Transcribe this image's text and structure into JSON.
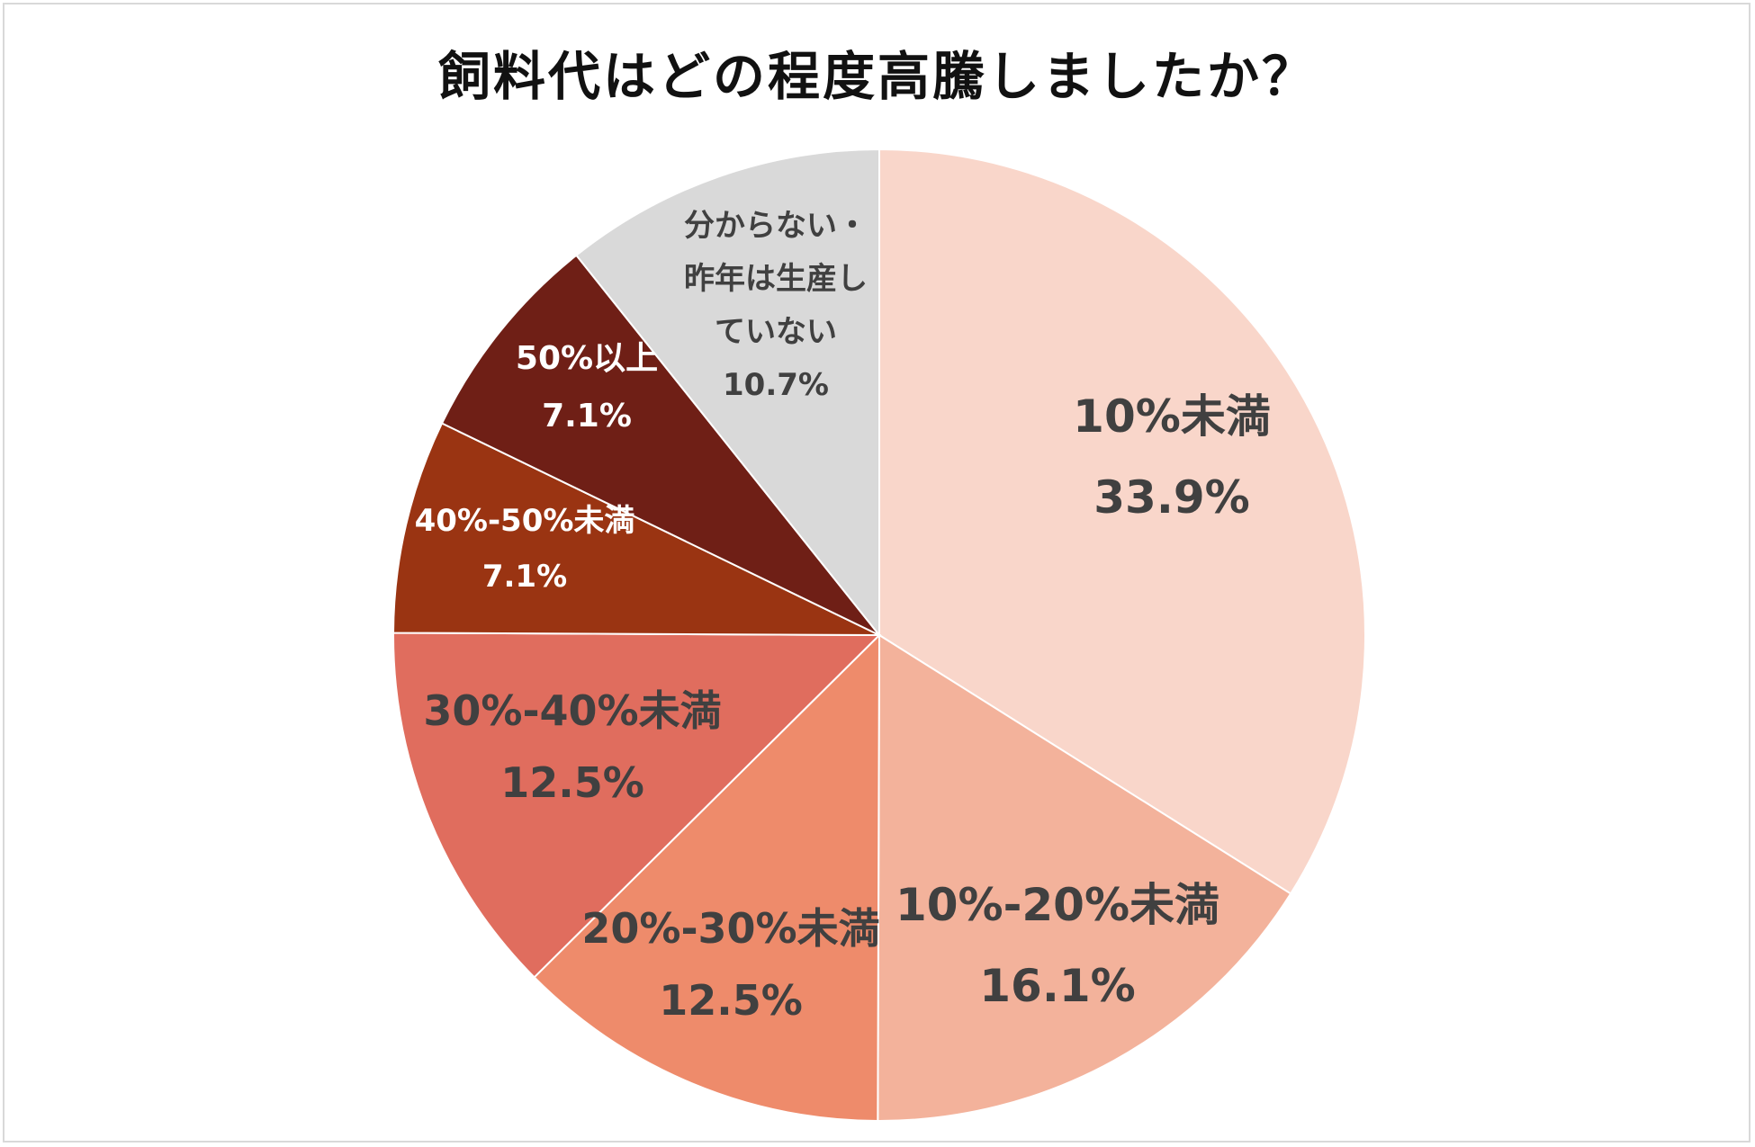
{
  "chart_data": {
    "type": "pie",
    "title": "飼料代はどの程度高騰しましたか？",
    "slices": [
      {
        "label_lines": [
          "10%未満"
        ],
        "value_label": "33.9%",
        "value": 33.9,
        "color": "#f9d6ca",
        "text_color": "#404040"
      },
      {
        "label_lines": [
          "10%-20%未満"
        ],
        "value_label": "16.1%",
        "value": 16.1,
        "color": "#f3b29b",
        "text_color": "#404040"
      },
      {
        "label_lines": [
          "20%-30%未満"
        ],
        "value_label": "12.5%",
        "value": 12.5,
        "color": "#ee8b6b",
        "text_color": "#404040"
      },
      {
        "label_lines": [
          "30%-40%未満"
        ],
        "value_label": "12.5%",
        "value": 12.5,
        "color": "#e06d5e",
        "text_color": "#404040"
      },
      {
        "label_lines": [
          "40%-50%未満"
        ],
        "value_label": "7.1%",
        "value": 7.1,
        "color": "#9a3412",
        "text_color": "#ffffff"
      },
      {
        "label_lines": [
          "50%以上"
        ],
        "value_label": "7.1%",
        "value": 7.1,
        "color": "#6f1f16",
        "text_color": "#ffffff"
      },
      {
        "label_lines": [
          "分からない・",
          "昨年は生産し",
          "ていない"
        ],
        "value_label": "10.7%",
        "value": 10.7,
        "color": "#d9d9d9",
        "text_color": "#404040"
      }
    ]
  }
}
